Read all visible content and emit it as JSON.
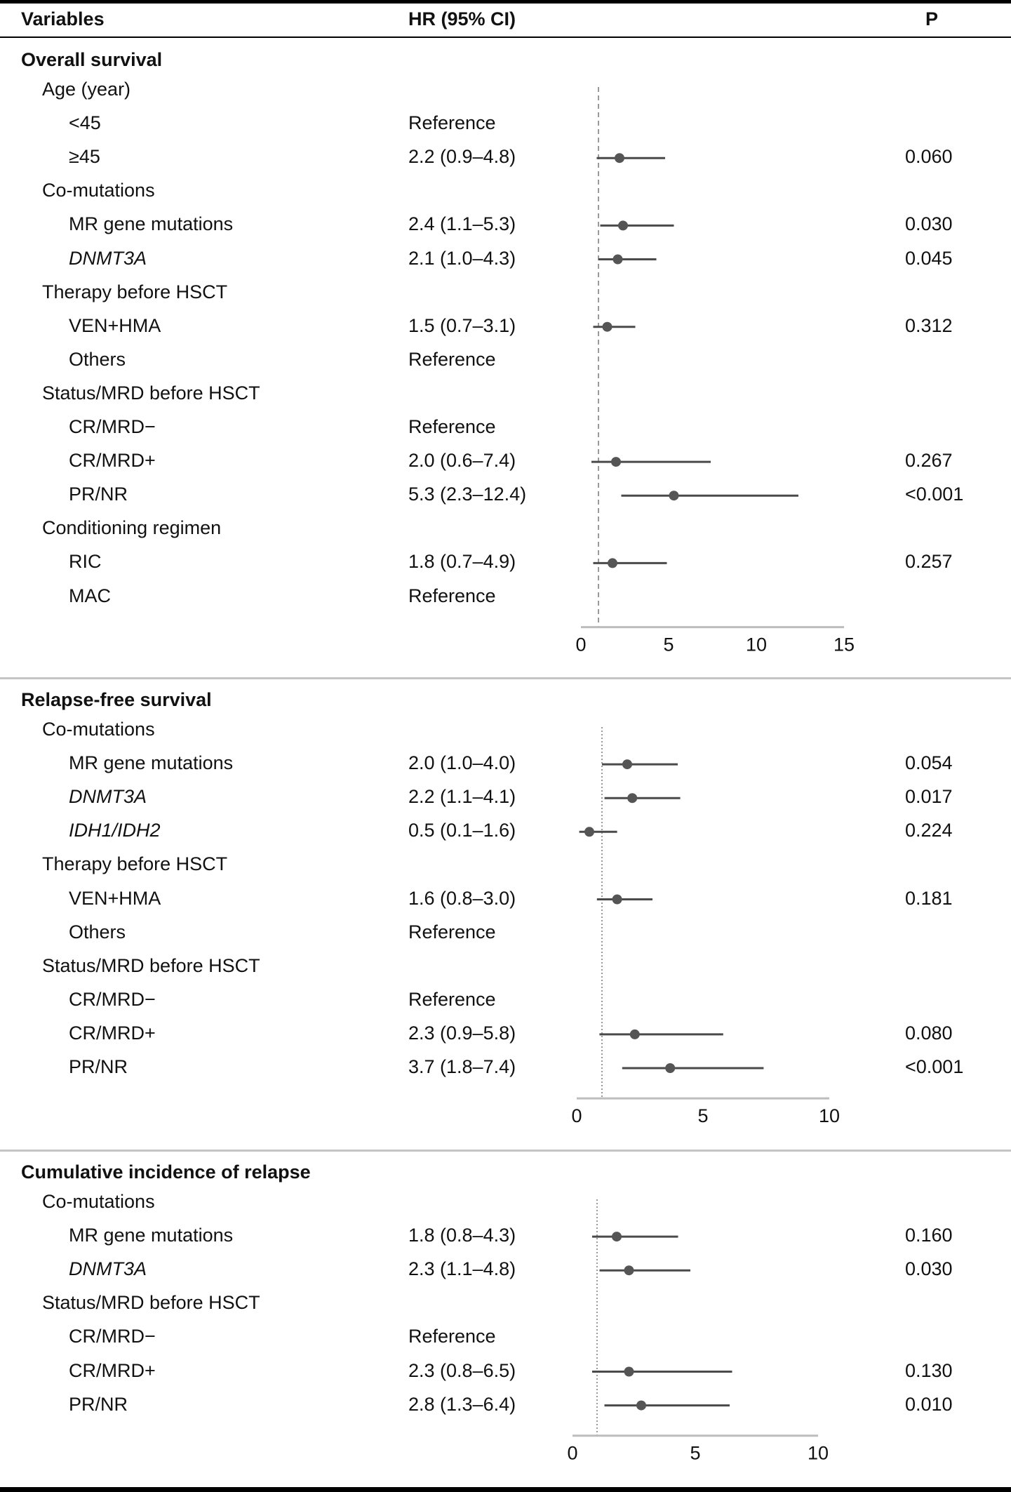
{
  "header": {
    "variables": "Variables",
    "hr": "HR (95% CI)",
    "p": "P"
  },
  "sections": [
    {
      "title": "Overall survival",
      "rows": [
        {
          "kind": "group",
          "label": "Age (year)"
        },
        {
          "kind": "item",
          "label": "<45",
          "hr": "Reference",
          "p": ""
        },
        {
          "kind": "item",
          "label": "≥45",
          "hr": "2.2 (0.9–4.8)",
          "p": "0.060"
        },
        {
          "kind": "group",
          "label": "Co-mutations"
        },
        {
          "kind": "item",
          "label": "MR gene mutations",
          "hr": "2.4 (1.1–5.3)",
          "p": "0.030"
        },
        {
          "kind": "item",
          "label": "DNMT3A",
          "italic": true,
          "hr": "2.1 (1.0–4.3)",
          "p": "0.045"
        },
        {
          "kind": "group",
          "label": "Therapy before HSCT"
        },
        {
          "kind": "item",
          "label": "VEN+HMA",
          "hr": "1.5 (0.7–3.1)",
          "p": "0.312"
        },
        {
          "kind": "item",
          "label": "Others",
          "hr": "Reference",
          "p": ""
        },
        {
          "kind": "group",
          "label": "Status/MRD before HSCT"
        },
        {
          "kind": "item",
          "label": "CR/MRD−",
          "hr": "Reference",
          "p": ""
        },
        {
          "kind": "item",
          "label": "CR/MRD+",
          "hr": "2.0 (0.6–7.4)",
          "p": "0.267"
        },
        {
          "kind": "item",
          "label": "PR/NR",
          "hr": "5.3 (2.3–12.4)",
          "p": "<0.001"
        },
        {
          "kind": "group",
          "label": "Conditioning regimen"
        },
        {
          "kind": "item",
          "label": "RIC",
          "hr": "1.8 (0.7–4.9)",
          "p": "0.257"
        },
        {
          "kind": "item",
          "label": "MAC",
          "hr": "Reference",
          "p": ""
        }
      ]
    },
    {
      "title": "Relapse-free survival",
      "rows": [
        {
          "kind": "group",
          "label": "Co-mutations"
        },
        {
          "kind": "item",
          "label": "MR gene mutations",
          "hr": "2.0 (1.0–4.0)",
          "p": "0.054"
        },
        {
          "kind": "item",
          "label": "DNMT3A",
          "italic": true,
          "hr": "2.2 (1.1–4.1)",
          "p": "0.017"
        },
        {
          "kind": "item",
          "label": "IDH1/IDH2",
          "italic": true,
          "hr": "0.5 (0.1–1.6)",
          "p": "0.224"
        },
        {
          "kind": "group",
          "label": "Therapy before HSCT"
        },
        {
          "kind": "item",
          "label": "VEN+HMA",
          "hr": "1.6 (0.8–3.0)",
          "p": "0.181"
        },
        {
          "kind": "item",
          "label": "Others",
          "hr": "Reference",
          "p": ""
        },
        {
          "kind": "group",
          "label": "Status/MRD before HSCT"
        },
        {
          "kind": "item",
          "label": "CR/MRD−",
          "hr": "Reference",
          "p": ""
        },
        {
          "kind": "item",
          "label": "CR/MRD+",
          "hr": "2.3 (0.9–5.8)",
          "p": "0.080"
        },
        {
          "kind": "item",
          "label": "PR/NR",
          "hr": "3.7 (1.8–7.4)",
          "p": "<0.001"
        }
      ]
    },
    {
      "title": "Cumulative incidence of relapse",
      "rows": [
        {
          "kind": "group",
          "label": "Co-mutations"
        },
        {
          "kind": "item",
          "label": "MR gene mutations",
          "hr": "1.8 (0.8–4.3)",
          "p": "0.160"
        },
        {
          "kind": "item",
          "label": "DNMT3A",
          "italic": true,
          "hr": "2.3 (1.1–4.8)",
          "p": "0.030"
        },
        {
          "kind": "group",
          "label": "Status/MRD before HSCT"
        },
        {
          "kind": "item",
          "label": "CR/MRD−",
          "hr": "Reference",
          "p": ""
        },
        {
          "kind": "item",
          "label": "CR/MRD+",
          "hr": "2.3 (0.8–6.5)",
          "p": "0.130"
        },
        {
          "kind": "item",
          "label": "PR/NR",
          "hr": "2.8 (1.3–6.4)",
          "p": "0.010"
        }
      ]
    }
  ],
  "chart_data": [
    {
      "type": "scatter",
      "title": "Overall survival",
      "xlim": [
        0,
        15
      ],
      "xticks": [
        0,
        5,
        10,
        15
      ],
      "reference_line": 1,
      "points": [
        {
          "label": "≥45",
          "hr": 2.2,
          "lo": 0.9,
          "hi": 4.8
        },
        {
          "label": "MR gene mutations",
          "hr": 2.4,
          "lo": 1.1,
          "hi": 5.3
        },
        {
          "label": "DNMT3A",
          "hr": 2.1,
          "lo": 1.0,
          "hi": 4.3
        },
        {
          "label": "VEN+HMA",
          "hr": 1.5,
          "lo": 0.7,
          "hi": 3.1
        },
        {
          "label": "CR/MRD+",
          "hr": 2.0,
          "lo": 0.6,
          "hi": 7.4
        },
        {
          "label": "PR/NR",
          "hr": 5.3,
          "lo": 2.3,
          "hi": 12.4
        },
        {
          "label": "RIC",
          "hr": 1.8,
          "lo": 0.7,
          "hi": 4.9
        }
      ]
    },
    {
      "type": "scatter",
      "title": "Relapse-free survival",
      "xlim": [
        0,
        10
      ],
      "xticks": [
        0,
        5,
        10
      ],
      "reference_line": 1,
      "points": [
        {
          "label": "MR gene mutations",
          "hr": 2.0,
          "lo": 1.0,
          "hi": 4.0
        },
        {
          "label": "DNMT3A",
          "hr": 2.2,
          "lo": 1.1,
          "hi": 4.1
        },
        {
          "label": "IDH1/IDH2",
          "hr": 0.5,
          "lo": 0.1,
          "hi": 1.6
        },
        {
          "label": "VEN+HMA",
          "hr": 1.6,
          "lo": 0.8,
          "hi": 3.0
        },
        {
          "label": "CR/MRD+",
          "hr": 2.3,
          "lo": 0.9,
          "hi": 5.8
        },
        {
          "label": "PR/NR",
          "hr": 3.7,
          "lo": 1.8,
          "hi": 7.4
        }
      ]
    },
    {
      "type": "scatter",
      "title": "Cumulative incidence of relapse",
      "xlim": [
        0,
        10
      ],
      "xticks": [
        0,
        5,
        10
      ],
      "reference_line": 1,
      "points": [
        {
          "label": "MR gene mutations",
          "hr": 1.8,
          "lo": 0.8,
          "hi": 4.3
        },
        {
          "label": "DNMT3A",
          "hr": 2.3,
          "lo": 1.1,
          "hi": 4.8
        },
        {
          "label": "CR/MRD+",
          "hr": 2.3,
          "lo": 0.8,
          "hi": 6.5
        },
        {
          "label": "PR/NR",
          "hr": 2.8,
          "lo": 1.3,
          "hi": 6.4
        }
      ]
    }
  ],
  "colors": {
    "line": "#4a4a4a",
    "marker": "#555555",
    "axis": "#bdbdbd",
    "refline": "#9a9a9a"
  }
}
